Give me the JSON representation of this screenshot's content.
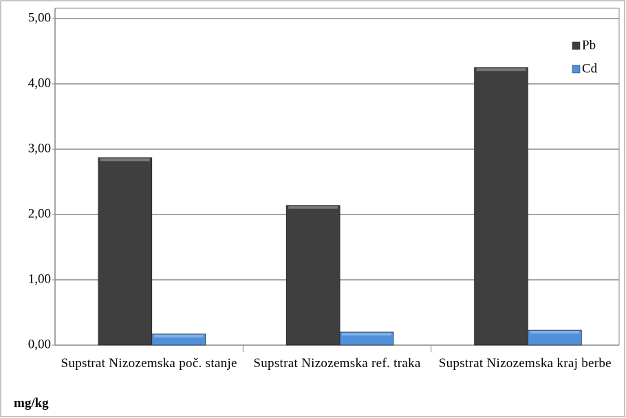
{
  "chart_data": {
    "type": "bar",
    "categories": [
      "Supstrat Nizozemska poč. stanje",
      "Supstrat Nizozemska ref. traka",
      "Supstrat Nizozemska kraj berbe"
    ],
    "series": [
      {
        "name": "Pb",
        "color": "#3f3f3f",
        "values": [
          2.87,
          2.14,
          4.25
        ]
      },
      {
        "name": "Cd",
        "color": "#4f8fdb",
        "values": [
          0.17,
          0.2,
          0.23
        ]
      }
    ],
    "y_label": "mg/kg",
    "ylim": [
      0,
      5
    ],
    "yticks": [
      {
        "value": 0,
        "label": "0,00"
      },
      {
        "value": 1,
        "label": "1,00"
      },
      {
        "value": 2,
        "label": "2,00"
      },
      {
        "value": 3,
        "label": "3,00"
      },
      {
        "value": 4,
        "label": "4,00"
      },
      {
        "value": 5,
        "label": "5,00"
      }
    ],
    "grid": true,
    "legend": "top-right"
  }
}
